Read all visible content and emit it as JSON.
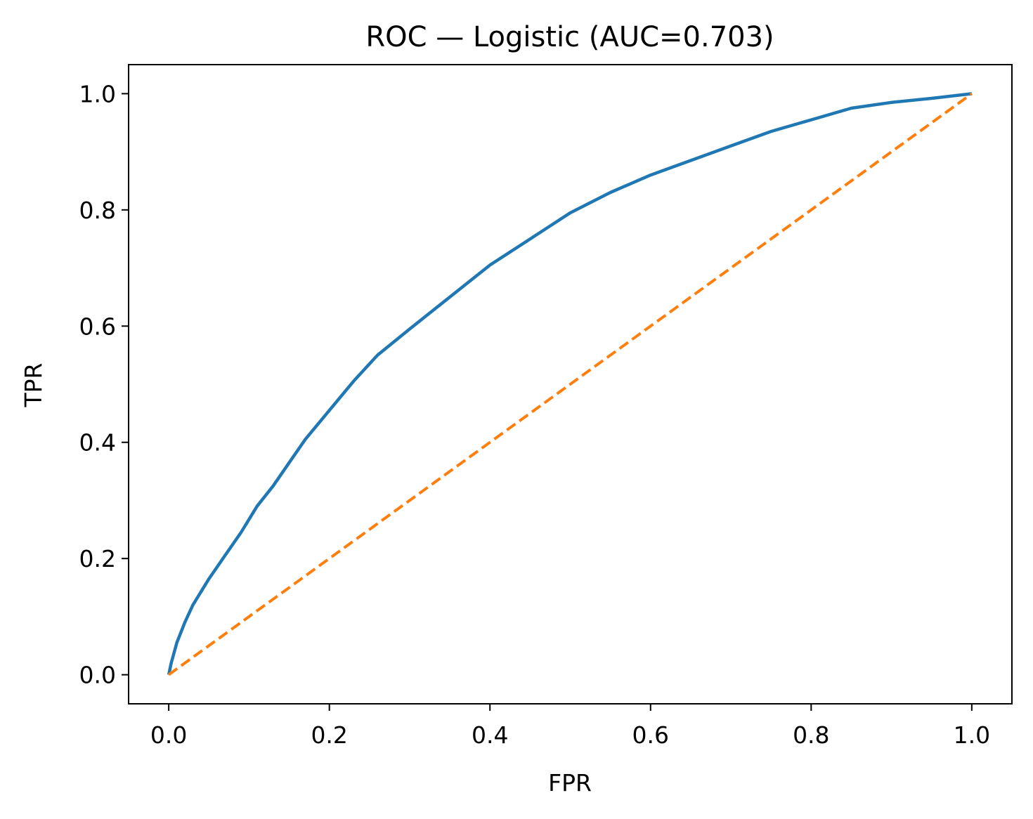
{
  "chart_data": {
    "type": "line",
    "title": "ROC — Logistic (AUC=0.703)",
    "xlabel": "FPR",
    "ylabel": "TPR",
    "xlim": [
      -0.05,
      1.05
    ],
    "ylim": [
      -0.05,
      1.05
    ],
    "xticks": [
      0.0,
      0.2,
      0.4,
      0.6,
      0.8,
      1.0
    ],
    "yticks": [
      0.0,
      0.2,
      0.4,
      0.6,
      0.8,
      1.0
    ],
    "xtick_labels": [
      "0.0",
      "0.2",
      "0.4",
      "0.6",
      "0.8",
      "1.0"
    ],
    "ytick_labels": [
      "0.0",
      "0.2",
      "0.4",
      "0.6",
      "0.8",
      "1.0"
    ],
    "grid": false,
    "series": [
      {
        "color": "#1f77b4",
        "style": "solid",
        "x": [
          0.0,
          0.003,
          0.01,
          0.02,
          0.03,
          0.05,
          0.07,
          0.09,
          0.11,
          0.13,
          0.15,
          0.17,
          0.2,
          0.23,
          0.26,
          0.3,
          0.35,
          0.4,
          0.45,
          0.5,
          0.55,
          0.6,
          0.65,
          0.7,
          0.75,
          0.8,
          0.85,
          0.9,
          0.95,
          1.0
        ],
        "y": [
          0.0,
          0.02,
          0.055,
          0.09,
          0.12,
          0.165,
          0.205,
          0.245,
          0.29,
          0.325,
          0.365,
          0.405,
          0.455,
          0.505,
          0.55,
          0.595,
          0.65,
          0.705,
          0.75,
          0.795,
          0.83,
          0.86,
          0.885,
          0.91,
          0.935,
          0.955,
          0.975,
          0.985,
          0.992,
          1.0
        ]
      },
      {
        "color": "#ff7f0e",
        "style": "dashed",
        "x": [
          0.0,
          1.0
        ],
        "y": [
          0.0,
          1.0
        ]
      }
    ]
  }
}
